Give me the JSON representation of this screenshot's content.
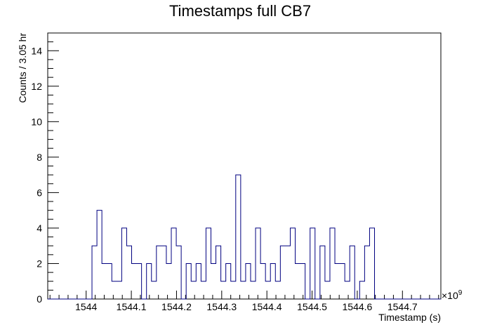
{
  "chart_data": {
    "type": "histogram",
    "title": "Timestamps full CB7",
    "xlabel": "Timestamp (s)",
    "ylabel": "Counts / 3.05 hr",
    "x_multiplier_label": "×10",
    "x_multiplier_exponent": "9",
    "xlim": [
      1543.915,
      1544.785
    ],
    "ylim": [
      0,
      15
    ],
    "grid": false,
    "legend": false,
    "line_color": "#000080",
    "x_tick_labels": [
      "1544",
      "1544.1",
      "1544.2",
      "1544.3",
      "1544.4",
      "1544.5",
      "1544.6",
      "1544.7"
    ],
    "x_tick_values": [
      1544.0,
      1544.1,
      1544.2,
      1544.3,
      1544.4,
      1544.5,
      1544.6,
      1544.7
    ],
    "y_tick_labels": [
      "0",
      "2",
      "4",
      "6",
      "8",
      "10",
      "12",
      "14"
    ],
    "y_tick_values": [
      0,
      2,
      4,
      6,
      8,
      10,
      12,
      14
    ],
    "bin_start": 1543.98,
    "bin_width": 0.01097,
    "values": [
      0,
      0,
      0,
      3,
      5,
      2,
      2,
      1,
      1,
      4,
      3,
      2,
      2,
      0,
      2,
      1,
      3,
      3,
      2,
      4,
      3,
      0,
      2,
      1,
      2,
      1,
      4,
      2,
      3,
      1,
      2,
      1,
      7,
      1,
      2,
      1,
      4,
      2,
      1,
      2,
      1,
      3,
      3,
      4,
      2,
      2,
      0,
      4,
      0,
      3,
      1,
      4,
      2,
      2,
      1,
      3,
      0,
      1,
      3,
      4,
      0
    ]
  }
}
